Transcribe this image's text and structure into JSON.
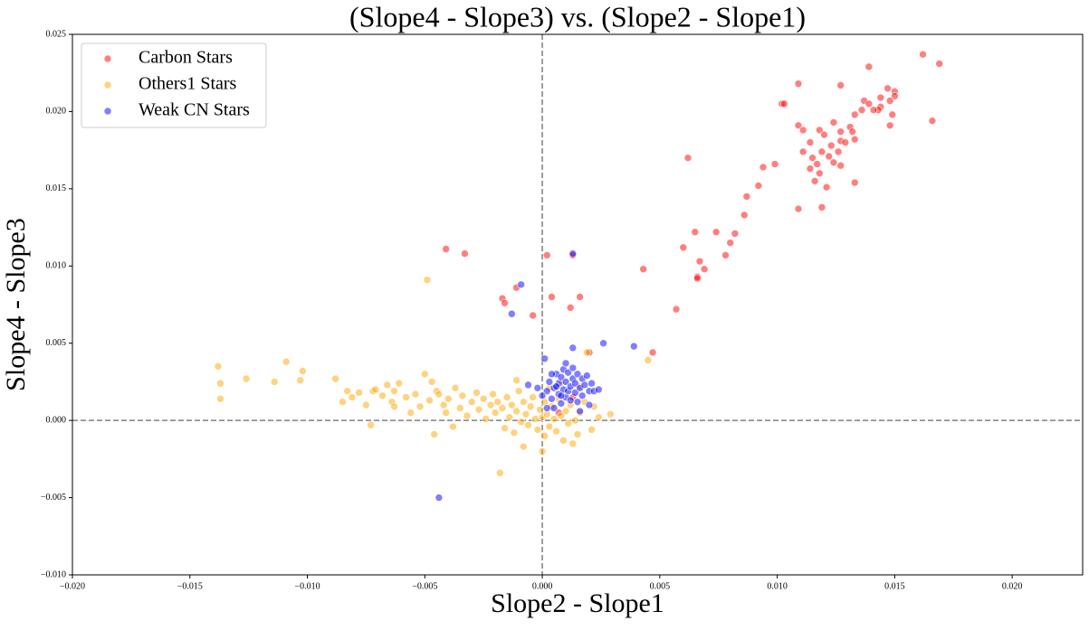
{
  "chart_data": {
    "type": "scatter",
    "title": "(Slope4 - Slope3) vs. (Slope2 - Slope1)",
    "x_label": "Slope2 - Slope1",
    "y_label": "Slope4 - Slope3",
    "xlim": [
      -0.02,
      0.023
    ],
    "ylim": [
      -0.01,
      0.025
    ],
    "xticks": [
      {
        "value": -0.02,
        "label": "−0.020"
      },
      {
        "value": -0.015,
        "label": "−0.015"
      },
      {
        "value": -0.01,
        "label": "−0.010"
      },
      {
        "value": -0.005,
        "label": "−0.005"
      },
      {
        "value": 0,
        "label": "0.000"
      },
      {
        "value": 0.005,
        "label": "0.005"
      },
      {
        "value": 0.01,
        "label": "0.010"
      },
      {
        "value": 0.015,
        "label": "0.015"
      },
      {
        "value": 0.02,
        "label": "0.020"
      }
    ],
    "yticks": [
      {
        "value": -0.01,
        "label": "−0.010"
      },
      {
        "value": -0.005,
        "label": "−0.005"
      },
      {
        "value": 0,
        "label": "0.000"
      },
      {
        "value": 0.005,
        "label": "0.005"
      },
      {
        "value": 0.01,
        "label": "0.010"
      },
      {
        "value": 0.015,
        "label": "0.015"
      },
      {
        "value": 0.02,
        "label": "0.020"
      },
      0.025
    ],
    "hline": 0,
    "vline": 0,
    "legend": "upper left",
    "series": [
      {
        "name": "Carbon Stars",
        "color": "#ff0000",
        "x": [
          0.0162,
          0.0169,
          0.0139,
          0.0109,
          0.0127,
          0.0147,
          0.015,
          0.015,
          0.0144,
          0.0137,
          0.0148,
          0.0139,
          0.0102,
          0.0103,
          0.0144,
          0.0143,
          0.0141,
          0.0136,
          0.0149,
          0.0133,
          0.0166,
          0.0124,
          0.0148,
          0.0109,
          0.0131,
          0.0118,
          0.0111,
          0.0127,
          0.0132,
          0.012,
          0.0133,
          0.0127,
          0.0114,
          0.0129,
          0.0123,
          0.0111,
          0.0126,
          0.0122,
          0.0119,
          0.0099,
          0.0115,
          0.0117,
          0.0124,
          0.0127,
          0.0114,
          0.0118,
          0.0094,
          0.0116,
          0.0133,
          0.0121,
          0.0092,
          0.0087,
          0.0109,
          0.0119,
          0.0062,
          0.0086,
          0.0065,
          0.0074,
          0.0082,
          0.008,
          0.006,
          0.0078,
          0.0067,
          0.0069,
          0.0043,
          0.0066,
          0.0066,
          0.0057,
          0.0047,
          -0.0041,
          -0.0033,
          0.0002,
          0.0013,
          -0.0017,
          -0.0016,
          -0.0011,
          0.0004,
          0.0016,
          0.0012,
          -0.0004,
          0.002,
          0.0013,
          0.0007
        ],
        "values": [
          0.0237,
          0.0231,
          0.0229,
          0.0218,
          0.0217,
          0.0215,
          0.0213,
          0.021,
          0.0209,
          0.0207,
          0.0207,
          0.0205,
          0.0205,
          0.0205,
          0.0203,
          0.0201,
          0.0201,
          0.0201,
          0.0198,
          0.0198,
          0.0194,
          0.0193,
          0.0191,
          0.0191,
          0.019,
          0.0188,
          0.0188,
          0.0187,
          0.0187,
          0.0185,
          0.0182,
          0.0181,
          0.018,
          0.018,
          0.0178,
          0.0174,
          0.0174,
          0.0171,
          0.0174,
          0.0166,
          0.017,
          0.0166,
          0.0167,
          0.0165,
          0.0163,
          0.016,
          0.0164,
          0.0155,
          0.0154,
          0.0151,
          0.0152,
          0.0145,
          0.0137,
          0.0138,
          0.017,
          0.0133,
          0.0122,
          0.0122,
          0.0121,
          0.0115,
          0.0112,
          0.0107,
          0.0103,
          0.0098,
          0.0098,
          0.0093,
          0.0092,
          0.0072,
          0.0044,
          0.0111,
          0.0108,
          0.0107,
          0.0107,
          0.0079,
          0.0076,
          0.0086,
          0.008,
          0.008,
          0.0073,
          0.0068,
          0.0044,
          0.0015,
          0.0005
        ]
      },
      {
        "name": "Others1 Stars",
        "color": "#ffa500",
        "x": [
          -0.0138,
          -0.0137,
          -0.0137,
          -0.0126,
          -0.0114,
          -0.0109,
          -0.0102,
          -0.0103,
          -0.0088,
          -0.0085,
          -0.0083,
          -0.0081,
          -0.0078,
          -0.0075,
          -0.0073,
          -0.0072,
          -0.0071,
          -0.0068,
          -0.0066,
          -0.0064,
          -0.0063,
          -0.0061,
          -0.0058,
          -0.0056,
          -0.0054,
          -0.005,
          -0.0049,
          -0.0048,
          -0.0047,
          -0.0045,
          -0.0044,
          -0.0042,
          -0.0041,
          -0.004,
          -0.0037,
          -0.0035,
          -0.0034,
          -0.0032,
          -0.003,
          -0.0028,
          -0.0027,
          -0.0025,
          -0.0024,
          -0.0022,
          -0.0021,
          -0.002,
          -0.0019,
          -0.0018,
          -0.0017,
          -0.0016,
          -0.0015,
          -0.0014,
          -0.0013,
          -0.0012,
          -0.0011,
          -0.001,
          -0.0009,
          -0.0008,
          -0.0007,
          -0.0006,
          -0.0005,
          -0.0004,
          -0.0003,
          -0.0002,
          -0.0001,
          0.0,
          0.0001,
          0.0001,
          0.0002,
          0.0003,
          0.0004,
          0.0005,
          0.0006,
          0.0007,
          0.0008,
          0.0009,
          0.001,
          0.0011,
          0.0012,
          0.0014,
          0.0015,
          0.0016,
          0.0018,
          0.0019,
          0.0021,
          0.0022,
          0.0024,
          0.0029,
          0.0045,
          -0.0046,
          -0.0038,
          -0.0008,
          0.0,
          0.0013,
          0.0003,
          -0.0011,
          0.0008,
          0.0016,
          -0.0052,
          -0.0063
        ],
        "values": [
          0.0035,
          0.0024,
          0.0014,
          0.0027,
          0.0025,
          0.0038,
          0.0032,
          0.0026,
          0.0027,
          0.0012,
          0.0019,
          0.0015,
          0.0018,
          0.001,
          -0.0003,
          0.0019,
          0.002,
          0.0016,
          0.0023,
          0.0012,
          0.0019,
          0.0024,
          0.0015,
          0.0005,
          0.0017,
          0.003,
          0.0091,
          0.0013,
          0.0025,
          0.0019,
          0.0017,
          0.001,
          0.0005,
          0.0014,
          0.0021,
          0.0008,
          0.0016,
          0.0003,
          0.0012,
          0.0018,
          0.0007,
          0.0014,
          0.0001,
          0.001,
          0.0017,
          0.0005,
          0.0012,
          -0.0034,
          0.0008,
          -0.0005,
          0.0015,
          0.0002,
          0.001,
          -0.0008,
          0.0006,
          0.0019,
          -0.0001,
          0.0012,
          0.0004,
          -0.0003,
          0.0009,
          0.0015,
          0.0001,
          -0.0006,
          0.0007,
          0.0002,
          -0.001,
          0.0012,
          0.0004,
          -0.0004,
          0.0009,
          0.0001,
          -0.0007,
          0.0014,
          0.0003,
          -0.0013,
          0.0006,
          -0.0002,
          0.001,
          0.0,
          -0.0009,
          0.0005,
          0.0012,
          0.0044,
          -0.0006,
          0.0009,
          0.0002,
          0.0004,
          0.0039,
          -0.0009,
          -0.0004,
          -0.0017,
          -0.002,
          -0.0015,
          0.0021,
          0.0026,
          0.0024,
          0.0022,
          0.0009,
          0.0009
        ]
      },
      {
        "name": "Weak CN Stars",
        "color": "#0000ff",
        "x": [
          0.0002,
          0.0003,
          0.0004,
          0.0005,
          0.0006,
          0.0007,
          0.0007,
          0.0008,
          0.0008,
          0.0009,
          0.0009,
          0.001,
          0.001,
          0.0011,
          0.0011,
          0.0012,
          0.0012,
          0.0013,
          0.0013,
          0.0014,
          0.0014,
          0.0015,
          0.0015,
          0.0016,
          0.0017,
          0.0017,
          0.0018,
          0.0019,
          0.002,
          0.0021,
          0.0022,
          0.0008,
          0.0006,
          0.0004,
          0.0001,
          0.0002,
          -0.0002,
          -0.0006,
          0.0,
          0.0013,
          0.0026,
          0.0039,
          0.002,
          0.0016,
          0.0013,
          -0.0009,
          -0.0013,
          -0.0044,
          0.0024,
          0.001,
          0.0005
        ],
        "values": [
          0.0019,
          0.0025,
          0.0014,
          0.0021,
          0.003,
          0.0017,
          0.0024,
          0.0011,
          0.0028,
          0.002,
          0.0033,
          0.0015,
          0.0025,
          0.0031,
          0.0019,
          0.0022,
          0.0013,
          0.0027,
          0.0034,
          0.0018,
          0.0024,
          0.003,
          0.0012,
          0.0021,
          0.0027,
          0.0016,
          0.0023,
          0.0029,
          0.0019,
          0.0024,
          0.0019,
          0.0016,
          0.0022,
          0.003,
          0.004,
          0.0008,
          0.0021,
          0.0023,
          0.0016,
          0.0047,
          0.005,
          0.0048,
          0.001,
          0.0006,
          0.0108,
          0.0088,
          0.0069,
          -0.005,
          0.002,
          0.0037,
          0.0008
        ]
      }
    ]
  }
}
